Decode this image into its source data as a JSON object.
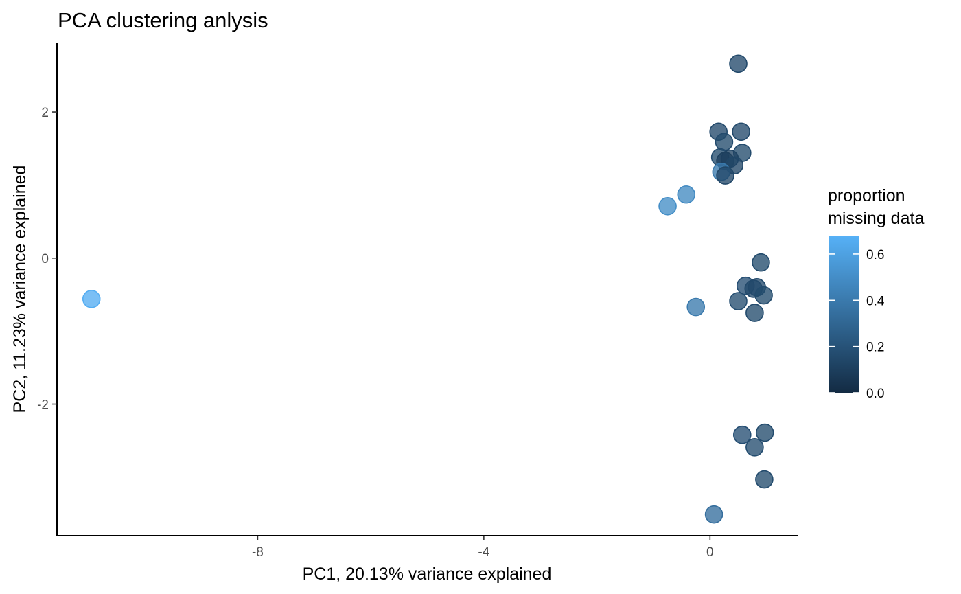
{
  "chart_data": {
    "type": "scatter",
    "title": "PCA clustering anlysis",
    "xlabel": "PC1, 20.13% variance explained",
    "ylabel": "PC2, 11.23% variance explained",
    "xlim": [
      -11.55,
      1.55
    ],
    "ylim": [
      -3.8,
      2.95
    ],
    "x_ticks": [
      {
        "value": -8,
        "label": "-8"
      },
      {
        "value": -4,
        "label": "-4"
      },
      {
        "value": 0,
        "label": "0"
      }
    ],
    "y_ticks": [
      {
        "value": 2,
        "label": "2"
      },
      {
        "value": 0,
        "label": "0"
      },
      {
        "value": -2,
        "label": "-2"
      }
    ],
    "grid": false,
    "legend": {
      "title_lines": [
        "proportion",
        "missing data"
      ],
      "position": "right",
      "type": "colorbar",
      "range": [
        0,
        0.68
      ],
      "ticks": [
        {
          "value": 0.0,
          "label": "0.0"
        },
        {
          "value": 0.2,
          "label": "0.2"
        },
        {
          "value": 0.4,
          "label": "0.4"
        },
        {
          "value": 0.6,
          "label": "0.6"
        }
      ],
      "color_low": "#132b43",
      "color_high": "#56b1f7"
    },
    "points": [
      {
        "x": -10.94,
        "y": -0.56,
        "missing": 0.66
      },
      {
        "x": 0.5,
        "y": 2.66,
        "missing": 0.15
      },
      {
        "x": 0.15,
        "y": 1.73,
        "missing": 0.15
      },
      {
        "x": 0.55,
        "y": 1.73,
        "missing": 0.15
      },
      {
        "x": 0.25,
        "y": 1.59,
        "missing": 0.16
      },
      {
        "x": 0.57,
        "y": 1.44,
        "missing": 0.16
      },
      {
        "x": 0.18,
        "y": 1.38,
        "missing": 0.16
      },
      {
        "x": 0.35,
        "y": 1.36,
        "missing": 0.12
      },
      {
        "x": 0.27,
        "y": 1.33,
        "missing": 0.1
      },
      {
        "x": 0.43,
        "y": 1.27,
        "missing": 0.14
      },
      {
        "x": 0.2,
        "y": 1.18,
        "missing": 0.4
      },
      {
        "x": 0.27,
        "y": 1.13,
        "missing": 0.14
      },
      {
        "x": -0.42,
        "y": 0.87,
        "missing": 0.48
      },
      {
        "x": -0.75,
        "y": 0.71,
        "missing": 0.5
      },
      {
        "x": 0.9,
        "y": -0.06,
        "missing": 0.16
      },
      {
        "x": 0.63,
        "y": -0.38,
        "missing": 0.18
      },
      {
        "x": 0.77,
        "y": -0.42,
        "missing": 0.15
      },
      {
        "x": 0.83,
        "y": -0.4,
        "missing": 0.15
      },
      {
        "x": 0.95,
        "y": -0.51,
        "missing": 0.16
      },
      {
        "x": 0.5,
        "y": -0.59,
        "missing": 0.17
      },
      {
        "x": -0.25,
        "y": -0.67,
        "missing": 0.4
      },
      {
        "x": 0.79,
        "y": -0.75,
        "missing": 0.16
      },
      {
        "x": 0.57,
        "y": -2.42,
        "missing": 0.18
      },
      {
        "x": 0.97,
        "y": -2.39,
        "missing": 0.16
      },
      {
        "x": 0.79,
        "y": -2.59,
        "missing": 0.17
      },
      {
        "x": 0.96,
        "y": -3.03,
        "missing": 0.16
      },
      {
        "x": 0.07,
        "y": -3.51,
        "missing": 0.34
      }
    ]
  }
}
